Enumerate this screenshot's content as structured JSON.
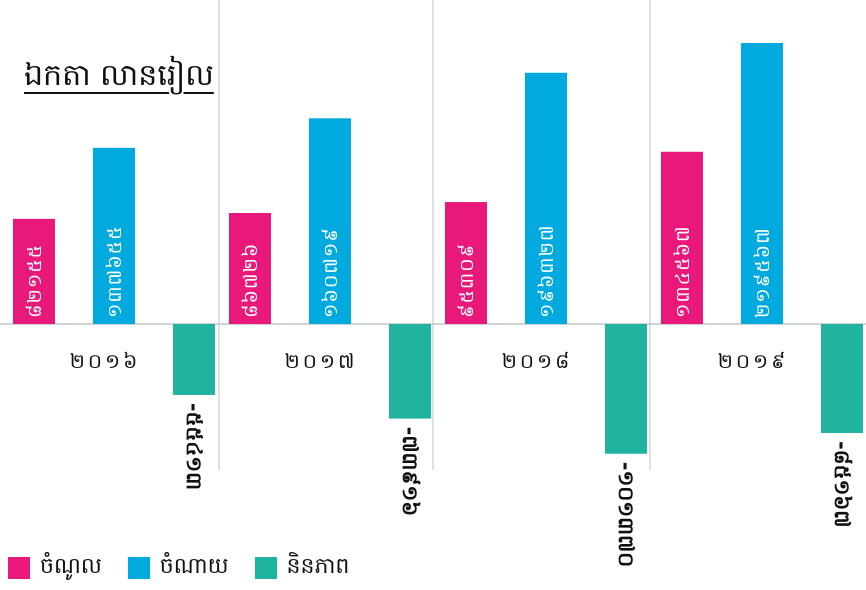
{
  "chart_data": {
    "type": "bar",
    "unit_label": "ឯកតា លានរៀល",
    "categories": [
      "២០១៦",
      "២០១៧",
      "២០១៨",
      "២០១៩"
    ],
    "series": [
      {
        "name": "ចំណូល",
        "color": "#e8197a",
        "values": [
          82155,
          86726,
          95309,
          134567
        ],
        "value_labels": [
          "៨២១៥៥",
          "៨៦៧២៦",
          "៩៥៣០៩",
          "១៣៤៥៦៧"
        ]
      },
      {
        "name": "ចំណាយ",
        "color": "#00aadf",
        "values": [
          137655,
          160719,
          196327,
          219567
        ],
        "value_labels": [
          "១៣៧៦៥៥",
          "១៦០៧១៩",
          "១៩៦៣២៧",
          "២១៩៥៦៧"
        ]
      },
      {
        "name": "និនភាព",
        "color": "#1fb3a0",
        "values": [
          -55413,
          -73916,
          -101370,
          -85167
        ],
        "value_labels": [
          "-៥៥៤១៣",
          "-៧៣៩១៦",
          "-១០១៣៧០",
          "-៨៥១៦៧"
        ]
      }
    ],
    "ylim": [
      -125000,
      260000
    ],
    "grid": false,
    "legend_position": "bottom-left"
  }
}
